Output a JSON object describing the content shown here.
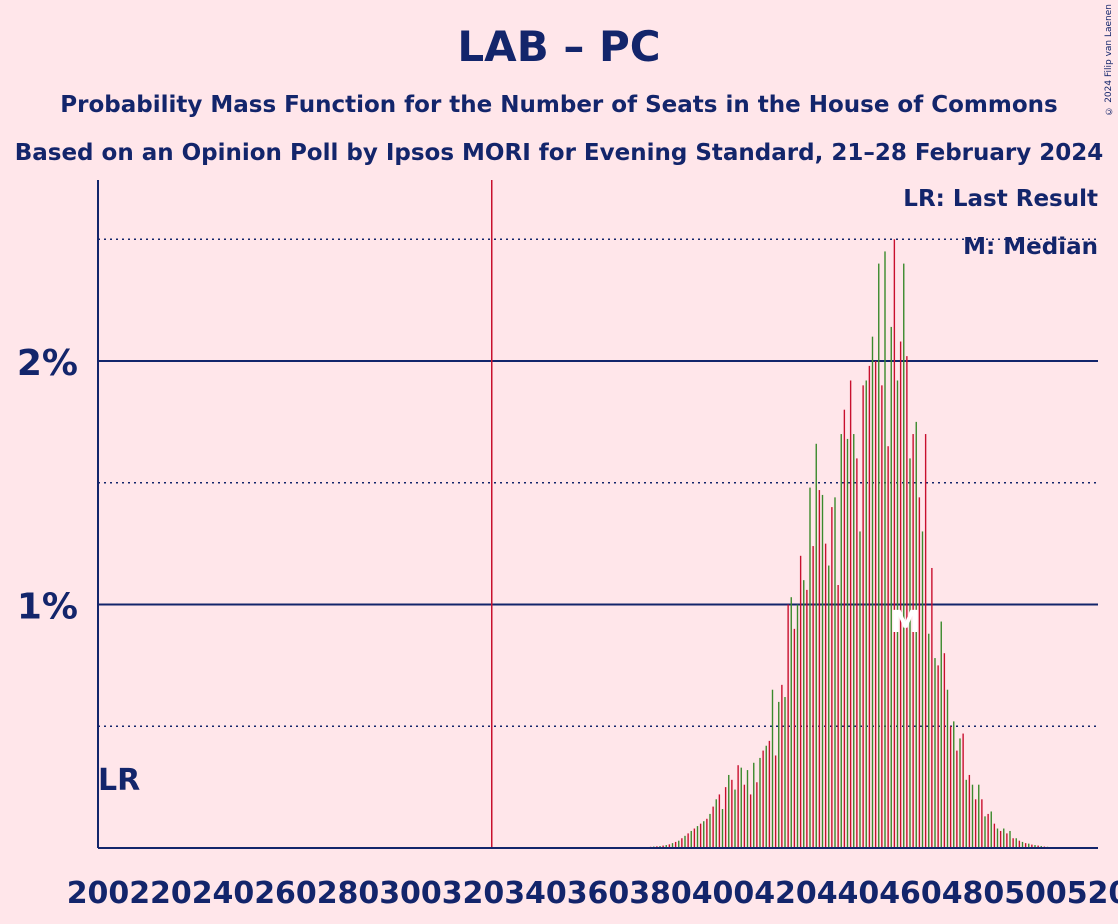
{
  "header": {
    "title": "LAB – PC",
    "subtitle_1": "Probability Mass Function for the Number of Seats in the House of Commons",
    "subtitle_2": "Based on an Opinion Poll by Ipsos MORI for Evening Standard, 21–28 February 2024",
    "copyright": "© 2024 Filip van Laenen"
  },
  "legend": {
    "last_result": "LR: Last Result",
    "median": "M: Median"
  },
  "colors": {
    "background": "#ffe6ea",
    "axis": "#13256b",
    "majority_line": "#c8102e",
    "bar_red": "#c8102e",
    "bar_green": "#3a8a2c",
    "median_label": "#ffffff"
  },
  "chart_data": {
    "type": "bar",
    "xlim": [
      200,
      520
    ],
    "ylim": [
      0,
      2.75
    ],
    "x_tick_labels": [
      "200",
      "220",
      "240",
      "260",
      "280",
      "300",
      "320",
      "340",
      "360",
      "380",
      "400",
      "420",
      "440",
      "460",
      "480",
      "500",
      "520"
    ],
    "y_tick_labels": [
      {
        "value": 1,
        "label": "1%"
      },
      {
        "value": 2,
        "label": "2%"
      }
    ],
    "solid_gridlines": [
      1,
      2
    ],
    "dotted_gridlines": [
      0.5,
      1.5,
      2.5
    ],
    "majority_seat": 326,
    "last_result_label": "LR",
    "last_result_seat": 200,
    "median_label": "M",
    "median_seat": 459,
    "seats": [
      375,
      376,
      377,
      378,
      379,
      380,
      381,
      382,
      383,
      384,
      385,
      386,
      387,
      388,
      389,
      390,
      391,
      392,
      393,
      394,
      395,
      396,
      397,
      398,
      399,
      400,
      401,
      402,
      403,
      404,
      405,
      406,
      407,
      408,
      409,
      410,
      411,
      412,
      413,
      414,
      415,
      416,
      417,
      418,
      419,
      420,
      421,
      422,
      423,
      424,
      425,
      426,
      427,
      428,
      429,
      430,
      431,
      432,
      433,
      434,
      435,
      436,
      437,
      438,
      439,
      440,
      441,
      442,
      443,
      444,
      445,
      446,
      447,
      448,
      449,
      450,
      451,
      452,
      453,
      454,
      455,
      456,
      457,
      458,
      459,
      460,
      461,
      462,
      463,
      464,
      465,
      466,
      467,
      468,
      469,
      470,
      471,
      472,
      473,
      474,
      475,
      476,
      477,
      478,
      479,
      480,
      481,
      482,
      483,
      484,
      485,
      486,
      487,
      488,
      489,
      490,
      491,
      492,
      493,
      494,
      495,
      496,
      497,
      498,
      499,
      500,
      501,
      502,
      503,
      504,
      505,
      506,
      507,
      508,
      509,
      510,
      511,
      512,
      513,
      514,
      515,
      516,
      517,
      518,
      519,
      520
    ],
    "values_percent": [
      0.003,
      0.004,
      0.005,
      0.006,
      0.007,
      0.008,
      0.01,
      0.012,
      0.015,
      0.02,
      0.025,
      0.03,
      0.04,
      0.05,
      0.06,
      0.07,
      0.08,
      0.09,
      0.1,
      0.11,
      0.12,
      0.14,
      0.17,
      0.2,
      0.22,
      0.16,
      0.25,
      0.3,
      0.28,
      0.24,
      0.34,
      0.33,
      0.26,
      0.32,
      0.22,
      0.35,
      0.27,
      0.37,
      0.4,
      0.42,
      0.44,
      0.65,
      0.38,
      0.6,
      0.67,
      0.62,
      1.0,
      1.03,
      0.9,
      1.0,
      1.2,
      1.1,
      1.06,
      1.48,
      1.24,
      1.66,
      1.47,
      1.45,
      1.25,
      1.16,
      1.4,
      1.44,
      1.08,
      1.7,
      1.8,
      1.68,
      1.92,
      1.7,
      1.6,
      1.3,
      1.9,
      1.92,
      1.98,
      2.1,
      2.0,
      2.4,
      1.9,
      2.45,
      1.65,
      2.14,
      2.5,
      1.92,
      2.08,
      2.4,
      2.02,
      1.6,
      1.7,
      1.75,
      1.44,
      1.3,
      1.7,
      0.88,
      1.15,
      0.78,
      0.75,
      0.93,
      0.8,
      0.65,
      0.5,
      0.52,
      0.4,
      0.45,
      0.47,
      0.28,
      0.3,
      0.26,
      0.2,
      0.26,
      0.2,
      0.13,
      0.14,
      0.15,
      0.1,
      0.08,
      0.07,
      0.08,
      0.06,
      0.07,
      0.04,
      0.04,
      0.03,
      0.025,
      0.02,
      0.018,
      0.014,
      0.012,
      0.01,
      0.008,
      0.006,
      0.005,
      0.004,
      0.003,
      0.002,
      0.002,
      0.001,
      0.001,
      0.001,
      0.001,
      0.001,
      0.001,
      0.001,
      0.001,
      0.001,
      0.001
    ]
  }
}
